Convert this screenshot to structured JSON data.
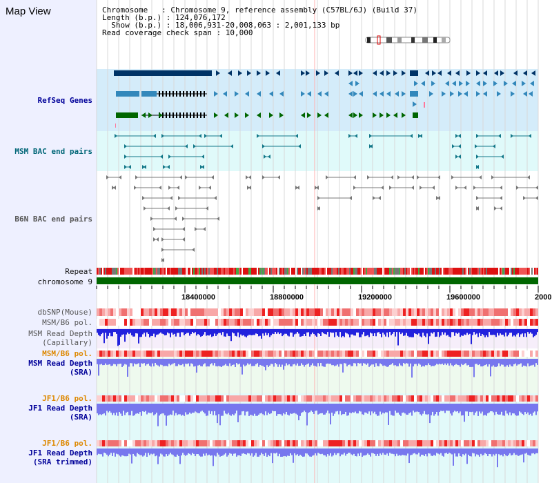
{
  "map_view": {
    "title": "Map View"
  },
  "assembly_info": {
    "line1": "Chromosome   : Chromosome 9, reference assembly (C57BL/6J) (Build 37)",
    "line2": "Length (b.p.) : 124,076,172",
    "line3": "  Show (b.p.) : 18,006,931-20,008,063 : 2,001,133 bp",
    "line4": "Read coverage check span : 10,000"
  },
  "tracks": {
    "refseq_genes": "RefSeq Genes",
    "msm_bac": "MSM BAC end pairs",
    "b6n_bac": "B6N BAC end pairs",
    "repeat": "Repeat",
    "chromosome": "chromosome 9",
    "dbsnp": "dbSNP(Mouse)",
    "msm_b6_pol_1": "MSM/B6 pol.",
    "msm_depth_cap_1": "MSM Read Depth",
    "msm_depth_cap_2": "(Capillary)",
    "msm_b6_pol_2": "MSM/B6 pol.",
    "msm_depth_sra_1": "MSM Read Depth",
    "msm_depth_sra_2": "(SRA)",
    "jf1_b6_pol_1": "JF1/B6 pol.",
    "jf1_depth_sra_1": "JF1 Read Depth",
    "jf1_depth_sra_2": "(SRA)",
    "jf1_b6_pol_2": "JF1/B6 pol.",
    "jf1_depth_trim_1": "JF1 Read Depth",
    "jf1_depth_trim_2": "(SRA trimmed)"
  },
  "axis": {
    "ticks": [
      "18400000",
      "18800000",
      "19200000",
      "19600000",
      "2000"
    ]
  },
  "colors": {
    "refseq_bg": "#d4ecfa",
    "msm_bac_bg": "#e0fafa",
    "gene_dark": "#003366",
    "gene_mid": "#3388bb",
    "gene_green": "#006600",
    "chromosome_bar": "#006600",
    "depth_blue": "#2222dd",
    "depth_light": "#7777ee"
  }
}
